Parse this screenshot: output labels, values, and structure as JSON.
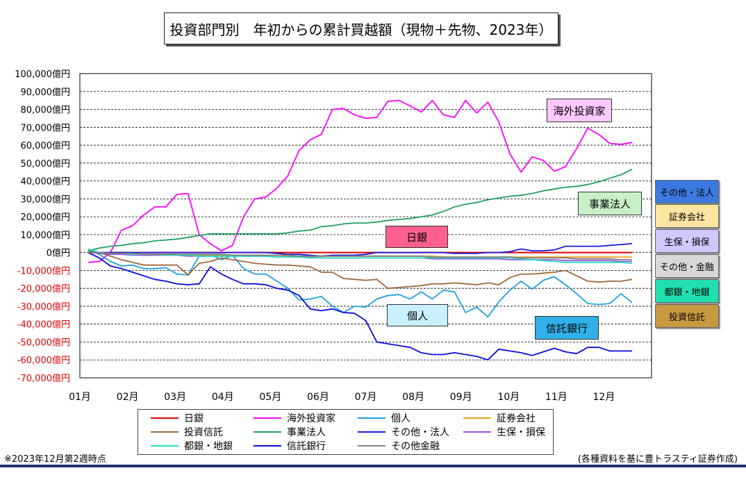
{
  "title": "投資部門別　年初からの累計買越額（現物＋先物、2023年）",
  "footnote": "※2023年12月第2週時点",
  "source": "(各種資料を基に豊トラスティ証券作成)",
  "chart_data": {
    "type": "line",
    "title": "投資部門別　年初からの累計買越額（現物＋先物、2023年）",
    "y_unit": "億円",
    "ylim": [
      -70000,
      100000
    ],
    "yticks": [
      100000,
      90000,
      80000,
      70000,
      60000,
      50000,
      40000,
      30000,
      20000,
      10000,
      0,
      -10000,
      -20000,
      -30000,
      -40000,
      -50000,
      -60000,
      -70000
    ],
    "ytick_labels": [
      "100,000億円",
      "90,000億円",
      "80,000億円",
      "70,000億円",
      "60,000億円",
      "50,000億円",
      "40,000億円",
      "30,000億円",
      "20,000億円",
      "10,000億円",
      "0億円",
      "-10,000億円",
      "-20,000億円",
      "-30,000億円",
      "-40,000億円",
      "-50,000億円",
      "-60,000億円",
      "-70,000億円"
    ],
    "xticks": [
      "01月",
      "02月",
      "03月",
      "04月",
      "05月",
      "06月",
      "07月",
      "08月",
      "09月",
      "10月",
      "11月",
      "12月"
    ],
    "grid": true,
    "legend_position": "bottom",
    "weeks": 50,
    "series": [
      {
        "name": "日銀",
        "color": "#e00000",
        "values": [
          0,
          0,
          0,
          0,
          0,
          0,
          0,
          0,
          0,
          0,
          0,
          0,
          0,
          0,
          0,
          0,
          0,
          0,
          0,
          0,
          0,
          0,
          0,
          0,
          0,
          0,
          0,
          0,
          0,
          0,
          0,
          0,
          0,
          0,
          0,
          0,
          0,
          0,
          0,
          0,
          0,
          0,
          0,
          0,
          0,
          0,
          0,
          0,
          0,
          0
        ]
      },
      {
        "name": "海外投資家",
        "color": "#ff00ff",
        "values": [
          -5500,
          -5000,
          0,
          12500,
          15000,
          21000,
          25500,
          25500,
          32500,
          33000,
          10000,
          5000,
          1000,
          4000,
          20000,
          30000,
          31000,
          36000,
          43000,
          57000,
          63000,
          66000,
          80000,
          80500,
          77000,
          75000,
          75500,
          84500,
          85000,
          82000,
          78500,
          85000,
          77000,
          75500,
          85000,
          78000,
          84000,
          73000,
          55000,
          45000,
          53500,
          51500,
          45500,
          48000,
          58000,
          69500,
          66000,
          61000,
          60500,
          61500
        ]
      },
      {
        "name": "個人",
        "color": "#1ea0e0",
        "values": [
          1000,
          -1000,
          -5000,
          -7500,
          -7000,
          -9000,
          -9000,
          -8500,
          -12000,
          -12500,
          -2000,
          -1000,
          -4000,
          -1500,
          -9000,
          -12000,
          -12000,
          -16000,
          -20000,
          -26500,
          -26000,
          -24500,
          -30000,
          -33500,
          -30000,
          -30500,
          -26000,
          -24000,
          -23500,
          -26000,
          -22000,
          -26000,
          -21000,
          -22000,
          -33500,
          -30500,
          -36000,
          -27500,
          -21000,
          -16000,
          -20500,
          -15500,
          -13500,
          -18000,
          -23000,
          -28500,
          -29000,
          -28500,
          -23000,
          -28000
        ]
      },
      {
        "name": "証券会社",
        "color": "#e8a020",
        "values": [
          0,
          0,
          0,
          -500,
          -500,
          -1000,
          -1000,
          -1000,
          -1000,
          -1500,
          -1500,
          -1500,
          -1500,
          -1500,
          -1500,
          -1500,
          -1500,
          -1500,
          -2000,
          -2000,
          -2000,
          -2000,
          -2000,
          -2000,
          -2000,
          -2000,
          -2000,
          -2000,
          -2000,
          -2000,
          -2000,
          -2000,
          -2500,
          -2500,
          -2500,
          -2500,
          -2500,
          -2500,
          -2500,
          -2500,
          -2500,
          -2500,
          -2500,
          -2500,
          -2500,
          -2500,
          -2500,
          -2500,
          -2500,
          -2500
        ]
      },
      {
        "name": "投資信託",
        "color": "#9e6a3a",
        "values": [
          1000,
          0,
          -2000,
          -4000,
          -5500,
          -7000,
          -7000,
          -7000,
          -7000,
          -12500,
          -6000,
          -5000,
          -3000,
          -4000,
          -5000,
          -6000,
          -6500,
          -7000,
          -7000,
          -7500,
          -8000,
          -11000,
          -11000,
          -14500,
          -15000,
          -15500,
          -15000,
          -20000,
          -19500,
          -19000,
          -18500,
          -17500,
          -17500,
          -17000,
          -17500,
          -18000,
          -17000,
          -18000,
          -14000,
          -12000,
          -12000,
          -11500,
          -11000,
          -10000,
          -13000,
          -16000,
          -16500,
          -16000,
          -16000,
          -15000
        ]
      },
      {
        "name": "事業法人",
        "color": "#20a060",
        "values": [
          1000,
          2500,
          3500,
          4000,
          5000,
          5500,
          6500,
          7000,
          7500,
          8500,
          9500,
          10500,
          10500,
          10500,
          10500,
          10500,
          10500,
          10500,
          11000,
          12000,
          12500,
          14500,
          15000,
          16000,
          16500,
          16500,
          17000,
          18000,
          18500,
          19000,
          20000,
          21000,
          23000,
          25500,
          27000,
          28000,
          29500,
          30500,
          31500,
          32000,
          33000,
          34500,
          35500,
          36500,
          37000,
          38000,
          39500,
          41500,
          43500,
          46500
        ]
      },
      {
        "name": "その他・法人",
        "color": "#1a1ae0",
        "values": [
          0,
          0,
          0,
          0,
          0,
          0,
          0,
          0,
          0,
          0,
          0,
          0,
          0,
          0,
          0,
          0,
          0,
          -500,
          -1000,
          -1000,
          -1500,
          -2000,
          -1500,
          -1500,
          -1500,
          -1000,
          0,
          0,
          0,
          0,
          0,
          0,
          0,
          -500,
          -500,
          -500,
          0,
          0,
          500,
          2000,
          1000,
          1000,
          1500,
          3500,
          3500,
          3500,
          3500,
          4000,
          4500,
          5000
        ]
      },
      {
        "name": "生保・損保",
        "color": "#a050e0",
        "values": [
          0,
          -500,
          -1000,
          -1000,
          -1500,
          -1500,
          -1500,
          -1500,
          -1500,
          -2000,
          -2000,
          -2000,
          -2000,
          -2000,
          -2000,
          -2000,
          -2000,
          -2500,
          -2500,
          -2500,
          -2500,
          -3000,
          -3000,
          -3000,
          -3000,
          -3000,
          -3000,
          -3000,
          -3000,
          -3000,
          -3000,
          -3500,
          -3500,
          -3500,
          -3500,
          -3500,
          -3500,
          -3500,
          -4000,
          -4000,
          -4000,
          -4000,
          -4000,
          -4500,
          -4500,
          -4500,
          -4500,
          -4500,
          -5000,
          -5000
        ]
      },
      {
        "name": "都銀・地銀",
        "color": "#20e0c0",
        "values": [
          2000,
          0,
          -500,
          -500,
          -1000,
          -1000,
          -1000,
          -1500,
          -1500,
          -1500,
          -2000,
          -2000,
          -2000,
          -2000,
          -2000,
          -2000,
          -2000,
          -2500,
          -2500,
          -2500,
          -3000,
          -3000,
          -3000,
          -3000,
          -3000,
          -3000,
          -3000,
          -3000,
          -3000,
          -3000,
          -3000,
          -3000,
          -3000,
          -3000,
          -3000,
          -3000,
          -3000,
          -3000,
          -3000,
          -3500,
          -4000,
          -4500,
          -5000,
          -5500,
          -5500,
          -5500,
          -5500,
          -5500,
          -5500,
          -6000
        ]
      },
      {
        "name": "信託銀行",
        "color": "#0a0adc",
        "values": [
          0,
          -3000,
          -7500,
          -9000,
          -11000,
          -13000,
          -15000,
          -16000,
          -17500,
          -18000,
          -17500,
          -8000,
          -12000,
          -15000,
          -17500,
          -17500,
          -18000,
          -20000,
          -21000,
          -24000,
          -31500,
          -32500,
          -31500,
          -33500,
          -34000,
          -38000,
          -50000,
          -51000,
          -52000,
          -53000,
          -56000,
          -57000,
          -57000,
          -56000,
          -57000,
          -58000,
          -60000,
          -54000,
          -55000,
          -56000,
          -57500,
          -55500,
          -53500,
          -55500,
          -56500,
          -53000,
          -53000,
          -55000,
          -55000,
          -55000
        ]
      },
      {
        "name": "その他金融",
        "color": "#808080",
        "values": [
          0,
          0,
          -500,
          -500,
          -500,
          -1000,
          -1000,
          -1000,
          -1000,
          -1000,
          -1000,
          -1000,
          -1000,
          -1500,
          -1500,
          -1500,
          -1500,
          -1500,
          -1500,
          -2000,
          -2000,
          -2000,
          -2000,
          -2000,
          -2000,
          -2000,
          -2000,
          -2000,
          -2000,
          -2000,
          -2000,
          -2500,
          -2500,
          -2500,
          -2500,
          -2500,
          -2500,
          -2500,
          -2500,
          -3000,
          -3000,
          -3000,
          -3000,
          -3000,
          -3500,
          -3500,
          -3500,
          -3500,
          -4000,
          -4000
        ]
      }
    ]
  },
  "callouts": [
    {
      "label": "海外投資家",
      "color": "#ffc8ff"
    },
    {
      "label": "事業法人",
      "color": "#c8f0c8"
    },
    {
      "label": "日銀",
      "color": "#ff6090"
    },
    {
      "label": "個人",
      "color": "#c8f0ff"
    },
    {
      "label": "信託銀行",
      "color": "#30b0e8"
    }
  ],
  "side_labels": [
    {
      "label": "その他・法人",
      "color": "#3a7ae0"
    },
    {
      "label": "証券会社",
      "color": "#ffe6a0"
    },
    {
      "label": "生保・損保",
      "color": "#d0c8ff"
    },
    {
      "label": "その他・金融",
      "color": "#d8d8d8"
    },
    {
      "label": "都銀・地銀",
      "color": "#20e0b0"
    },
    {
      "label": "投資信託",
      "color": "#c89a40"
    }
  ],
  "legend": [
    {
      "label": "日銀",
      "color": "#e00000"
    },
    {
      "label": "海外投資家",
      "color": "#ff00ff"
    },
    {
      "label": "個人",
      "color": "#1ea0e0"
    },
    {
      "label": "証券会社",
      "color": "#e8a020"
    },
    {
      "label": "投資信託",
      "color": "#9e6a3a"
    },
    {
      "label": "事業法人",
      "color": "#20a060"
    },
    {
      "label": "その他・法人",
      "color": "#1a1ae0"
    },
    {
      "label": "生保・損保",
      "color": "#a050e0"
    },
    {
      "label": "都銀・地銀",
      "color": "#20e0c0"
    },
    {
      "label": "信託銀行",
      "color": "#0a0adc"
    },
    {
      "label": "その他金融",
      "color": "#808080"
    }
  ]
}
